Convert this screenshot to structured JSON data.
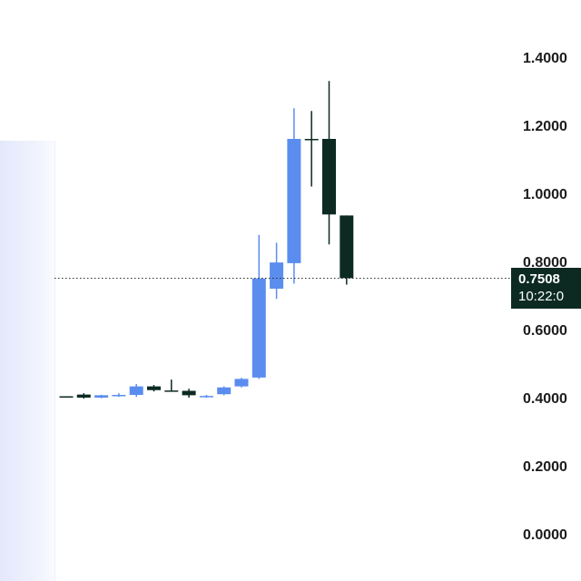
{
  "chart_data": {
    "type": "candlestick",
    "ylim": [
      0,
      1.4
    ],
    "y_ticks": [
      "0.0000",
      "0.2000",
      "0.4000",
      "0.6000",
      "0.8000",
      "1.0000",
      "1.2000",
      "1.4000"
    ],
    "y_tick_values": [
      0,
      0.2,
      0.4,
      0.6,
      0.8,
      1.0,
      1.2,
      1.4
    ],
    "colors": {
      "up": "#5b8def",
      "down": "#0c2a22"
    },
    "candles": [
      {
        "o": 0.404,
        "h": 0.404,
        "l": 0.4,
        "c": 0.402
      },
      {
        "o": 0.409,
        "h": 0.413,
        "l": 0.397,
        "c": 0.4
      },
      {
        "o": 0.4,
        "h": 0.408,
        "l": 0.398,
        "c": 0.407
      },
      {
        "o": 0.405,
        "h": 0.413,
        "l": 0.402,
        "c": 0.408
      },
      {
        "o": 0.408,
        "h": 0.44,
        "l": 0.402,
        "c": 0.433
      },
      {
        "o": 0.433,
        "h": 0.437,
        "l": 0.418,
        "c": 0.422
      },
      {
        "o": 0.421,
        "h": 0.453,
        "l": 0.418,
        "c": 0.42
      },
      {
        "o": 0.42,
        "h": 0.426,
        "l": 0.4,
        "c": 0.407
      },
      {
        "o": 0.404,
        "h": 0.408,
        "l": 0.4,
        "c": 0.405
      },
      {
        "o": 0.41,
        "h": 0.433,
        "l": 0.407,
        "c": 0.43
      },
      {
        "o": 0.433,
        "h": 0.458,
        "l": 0.43,
        "c": 0.455
      },
      {
        "o": 0.459,
        "h": 0.878,
        "l": 0.455,
        "c": 0.75
      },
      {
        "o": 0.72,
        "h": 0.855,
        "l": 0.69,
        "c": 0.797
      },
      {
        "o": 0.795,
        "h": 1.25,
        "l": 0.735,
        "c": 1.16
      },
      {
        "o": 1.16,
        "h": 1.242,
        "l": 1.02,
        "c": 1.156
      },
      {
        "o": 1.16,
        "h": 1.33,
        "l": 0.85,
        "c": 0.938
      },
      {
        "o": 0.935,
        "h": 0.935,
        "l": 0.732,
        "c": 0.751
      }
    ],
    "last_price": 0.7508,
    "last_price_label": "0.7508",
    "time_label": "10:22:0"
  }
}
